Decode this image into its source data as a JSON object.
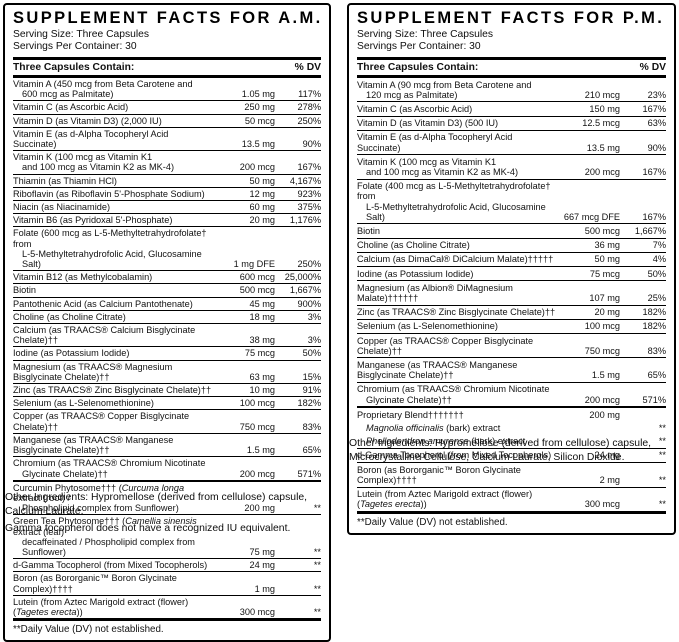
{
  "am": {
    "title": "SUPPLEMENT FACTS FOR A.M.",
    "serving_size": "Serving Size: Three Capsules",
    "servings_per_container": "Servings Per Container: 30",
    "column_header": "Three Capsules Contain:",
    "dv_header": "% DV",
    "rows": [
      {
        "lines": [
          "Vitamin A (450 mcg from Beta Carotene and",
          "600 mcg as Palmitate)"
        ],
        "amount": "1.05 mg",
        "dv": "117%"
      },
      {
        "lines": [
          "Vitamin C (as Ascorbic Acid)"
        ],
        "amount": "250 mg",
        "dv": "278%"
      },
      {
        "lines": [
          "Vitamin D (as Vitamin D3) (2,000 IU)"
        ],
        "amount": "50 mcg",
        "dv": "250%"
      },
      {
        "lines": [
          "Vitamin E (as d-Alpha Tocopheryl Acid Succinate)"
        ],
        "amount": "13.5 mg",
        "dv": "90%"
      },
      {
        "lines": [
          "Vitamin K (100 mcg as Vitamin K1",
          "and 100 mcg as Vitamin K2 as MK-4)"
        ],
        "amount": "200 mcg",
        "dv": "167%"
      },
      {
        "lines": [
          "Thiamin (as Thiamin HCl)"
        ],
        "amount": "50 mg",
        "dv": "4,167%"
      },
      {
        "lines": [
          "Riboflavin (as Riboflavin 5'-Phosphate Sodium)"
        ],
        "amount": "12 mg",
        "dv": "923%"
      },
      {
        "lines": [
          "Niacin (as Niacinamide)"
        ],
        "amount": "60 mg",
        "dv": "375%"
      },
      {
        "lines": [
          "Vitamin B6 (as Pyridoxal 5'-Phosphate)"
        ],
        "amount": "20 mg",
        "dv": "1,176%"
      },
      {
        "lines": [
          "Folate (600 mcg as L-5-Methyltetrahydrofolate† from",
          "L-5-Methyltetrahydrofolic Acid, Glucosamine Salt)"
        ],
        "amount": "1 mg DFE",
        "dv": "250%"
      },
      {
        "lines": [
          "Vitamin B12 (as Methylcobalamin)"
        ],
        "amount": "600 mcg",
        "dv": "25,000%"
      },
      {
        "lines": [
          "Biotin"
        ],
        "amount": "500 mcg",
        "dv": "1,667%"
      },
      {
        "lines": [
          "Pantothenic Acid (as Calcium Pantothenate)"
        ],
        "amount": "45 mg",
        "dv": "900%"
      },
      {
        "lines": [
          "Choline (as Choline Citrate)"
        ],
        "amount": "18 mg",
        "dv": "3%"
      },
      {
        "lines": [
          "Calcium (as TRAACS® Calcium Bisglycinate Chelate)††"
        ],
        "amount": "38 mg",
        "dv": "3%"
      },
      {
        "lines": [
          "Iodine (as Potassium Iodide)"
        ],
        "amount": "75 mcg",
        "dv": "50%"
      },
      {
        "lines": [
          "Magnesium (as TRAACS® Magnesium Bisglycinate Chelate)††"
        ],
        "amount": "63 mg",
        "dv": "15%"
      },
      {
        "lines": [
          "Zinc (as TRAACS® Zinc Bisglycinate Chelate)††"
        ],
        "amount": "10 mg",
        "dv": "91%"
      },
      {
        "lines": [
          "Selenium (as L-Selenomethionine)"
        ],
        "amount": "100 mcg",
        "dv": "182%"
      },
      {
        "lines": [
          "Copper (as TRAACS® Copper Bisglycinate Chelate)††"
        ],
        "amount": "750 mcg",
        "dv": "83%"
      },
      {
        "lines": [
          "Manganese (as TRAACS® Manganese Bisglycinate Chelate)††"
        ],
        "amount": "1.5 mg",
        "dv": "65%"
      },
      {
        "lines": [
          "Chromium (as TRAACS® Chromium Nicotinate",
          "Glycinate Chelate)††"
        ],
        "amount": "200 mcg",
        "dv": "571%"
      },
      {
        "lines": [
          "Curcumin Phytosome††† (_Curcuma longa_ extract (root) /",
          "Phospholipid complex from Sunflower)"
        ],
        "amount": "200 mg",
        "dv": "**",
        "sep": "medium"
      },
      {
        "lines": [
          "Green Tea Phytosome††† (_Camellia sinensis_ extract (leaf)",
          "decaffeinated / Phospholipid complex from Sunflower)"
        ],
        "amount": "75 mg",
        "dv": "**"
      },
      {
        "lines": [
          "d-Gamma Tocopherol (from Mixed Tocopherols)"
        ],
        "amount": "24 mg",
        "dv": "**"
      },
      {
        "lines": [
          "Boron (as Bororganic™ Boron Glycinate Complex)††††"
        ],
        "amount": "1 mg",
        "dv": "**"
      },
      {
        "lines": [
          "Lutein (from Aztec Marigold extract (flower) (_Tagetes erecta_))"
        ],
        "amount": "300 mcg",
        "dv": "**"
      }
    ],
    "footnote": "**Daily Value (DV) not established.",
    "notes": [
      "Other Ingredients: Hypromellose (derived from cellulose) capsule, Calcium Laurate.",
      "Gamma tocopherol does not have a recognized IU equivalent."
    ]
  },
  "pm": {
    "title": "SUPPLEMENT FACTS FOR P.M.",
    "serving_size": "Serving Size: Three Capsules",
    "servings_per_container": "Servings Per Container: 30",
    "column_header": "Three Capsules Contain:",
    "dv_header": "% DV",
    "rows": [
      {
        "lines": [
          "Vitamin A (90 mcg from Beta Carotene and",
          "120 mcg as Palmitate)"
        ],
        "amount": "210 mcg",
        "dv": "23%"
      },
      {
        "lines": [
          "Vitamin C (as Ascorbic Acid)"
        ],
        "amount": "150 mg",
        "dv": "167%"
      },
      {
        "lines": [
          "Vitamin D (as Vitamin D3) (500 IU)"
        ],
        "amount": "12.5 mcg",
        "dv": "63%"
      },
      {
        "lines": [
          "Vitamin E (as d-Alpha Tocopheryl Acid Succinate)"
        ],
        "amount": "13.5 mg",
        "dv": "90%"
      },
      {
        "lines": [
          "Vitamin K (100 mcg as Vitamin K1",
          "and 100 mcg as Vitamin K2 as MK-4)"
        ],
        "amount": "200 mcg",
        "dv": "167%"
      },
      {
        "lines": [
          "Folate (400 mcg as L-5-Methyltetrahydrofolate† from",
          "L-5-Methyltetrahydrofolic Acid, Glucosamine Salt)"
        ],
        "amount": "667 mcg DFE",
        "dv": "167%"
      },
      {
        "lines": [
          "Biotin"
        ],
        "amount": "500 mcg",
        "dv": "1,667%"
      },
      {
        "lines": [
          "Choline (as Choline Citrate)"
        ],
        "amount": "36 mg",
        "dv": "7%"
      },
      {
        "lines": [
          "Calcium (as DimaCal® DiCalcium Malate)†††††"
        ],
        "amount": "50 mg",
        "dv": "4%"
      },
      {
        "lines": [
          "Iodine (as Potassium Iodide)"
        ],
        "amount": "75 mcg",
        "dv": "50%"
      },
      {
        "lines": [
          "Magnesium (as Albion® DiMagnesium Malate)††††††"
        ],
        "amount": "107 mg",
        "dv": "25%"
      },
      {
        "lines": [
          "Zinc (as TRAACS® Zinc Bisglycinate Chelate)††"
        ],
        "amount": "20 mg",
        "dv": "182%"
      },
      {
        "lines": [
          "Selenium (as L-Selenomethionine)"
        ],
        "amount": "100 mcg",
        "dv": "182%"
      },
      {
        "lines": [
          "Copper (as TRAACS® Copper Bisglycinate Chelate)††"
        ],
        "amount": "750 mcg",
        "dv": "83%"
      },
      {
        "lines": [
          "Manganese (as TRAACS® Manganese Bisglycinate Chelate)††"
        ],
        "amount": "1.5 mg",
        "dv": "65%"
      },
      {
        "lines": [
          "Chromium (as TRAACS® Chromium Nicotinate",
          "Glycinate Chelate)††"
        ],
        "amount": "200 mcg",
        "dv": "571%"
      },
      {
        "lines": [
          "Proprietary Blend†††††††"
        ],
        "amount": "200 mg",
        "dv": "",
        "sep": "medium"
      },
      {
        "lines": [
          "_Magnolia officinalis_ (bark) extract"
        ],
        "amount": "",
        "dv": "**",
        "flush": true,
        "indent": true
      },
      {
        "lines": [
          "_Phellodendron amurense_ (bark) extract"
        ],
        "amount": "",
        "dv": "**",
        "flush": true,
        "indent": true
      },
      {
        "lines": [
          "d-Gamma Tocopherol (from Mixed Tocopherols)"
        ],
        "amount": "24 mg",
        "dv": "**"
      },
      {
        "lines": [
          "Boron (as Bororganic™ Boron Glycinate Complex)††††"
        ],
        "amount": "2 mg",
        "dv": "**"
      },
      {
        "lines": [
          "Lutein (from Aztec Marigold extract (flower) (_Tagetes erecta_))"
        ],
        "amount": "300 mcg",
        "dv": "**"
      }
    ],
    "footnote": "**Daily Value (DV) not established.",
    "notes": [
      "Other Ingredients: Hypromellose (derived from cellulose) capsule, Microcrystalline Cellulose, Calcium Laurate, Silicon Dioxide."
    ]
  }
}
